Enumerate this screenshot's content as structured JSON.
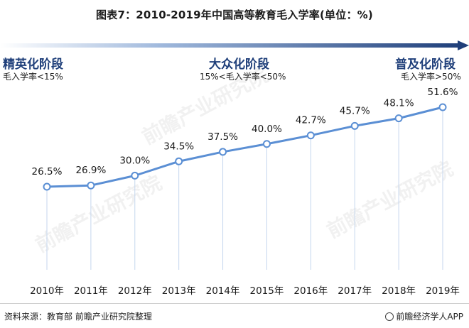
{
  "title": "图表7：2010-2019年中国高等教育毛入学率(单位：%)",
  "stages": [
    {
      "name": "精英化阶段",
      "range": "毛入学率<15%"
    },
    {
      "name": "大众化阶段",
      "range": "15%<毛入学率<50%"
    },
    {
      "name": "普及化阶段",
      "range": "毛入学率>50%"
    }
  ],
  "colors": {
    "line": "#5b8fd4",
    "marker_fill": "#ffffff",
    "stem": "#c5d6ee",
    "arrow_dark": "#1f3f7a"
  },
  "chart_data": {
    "type": "line",
    "categories": [
      "2010年",
      "2011年",
      "2012年",
      "2013年",
      "2014年",
      "2015年",
      "2016年",
      "2017年",
      "2018年",
      "2019年"
    ],
    "values": [
      26.5,
      26.9,
      30.0,
      34.5,
      37.5,
      40.0,
      42.7,
      45.7,
      48.1,
      51.6
    ],
    "value_labels": [
      "26.5%",
      "26.9%",
      "30.0%",
      "34.5%",
      "37.5%",
      "40.0%",
      "42.7%",
      "45.7%",
      "48.1%",
      "51.6%"
    ],
    "title": "图表7：2010-2019年中国高等教育毛入学率(单位：%)",
    "xlabel": "",
    "ylabel": "",
    "grid": false
  },
  "footer": {
    "source": "资料来源：教育部 前瞻产业研究院整理",
    "brand": "前瞻经济学人APP"
  },
  "watermark_text": "前瞻产业研究院"
}
